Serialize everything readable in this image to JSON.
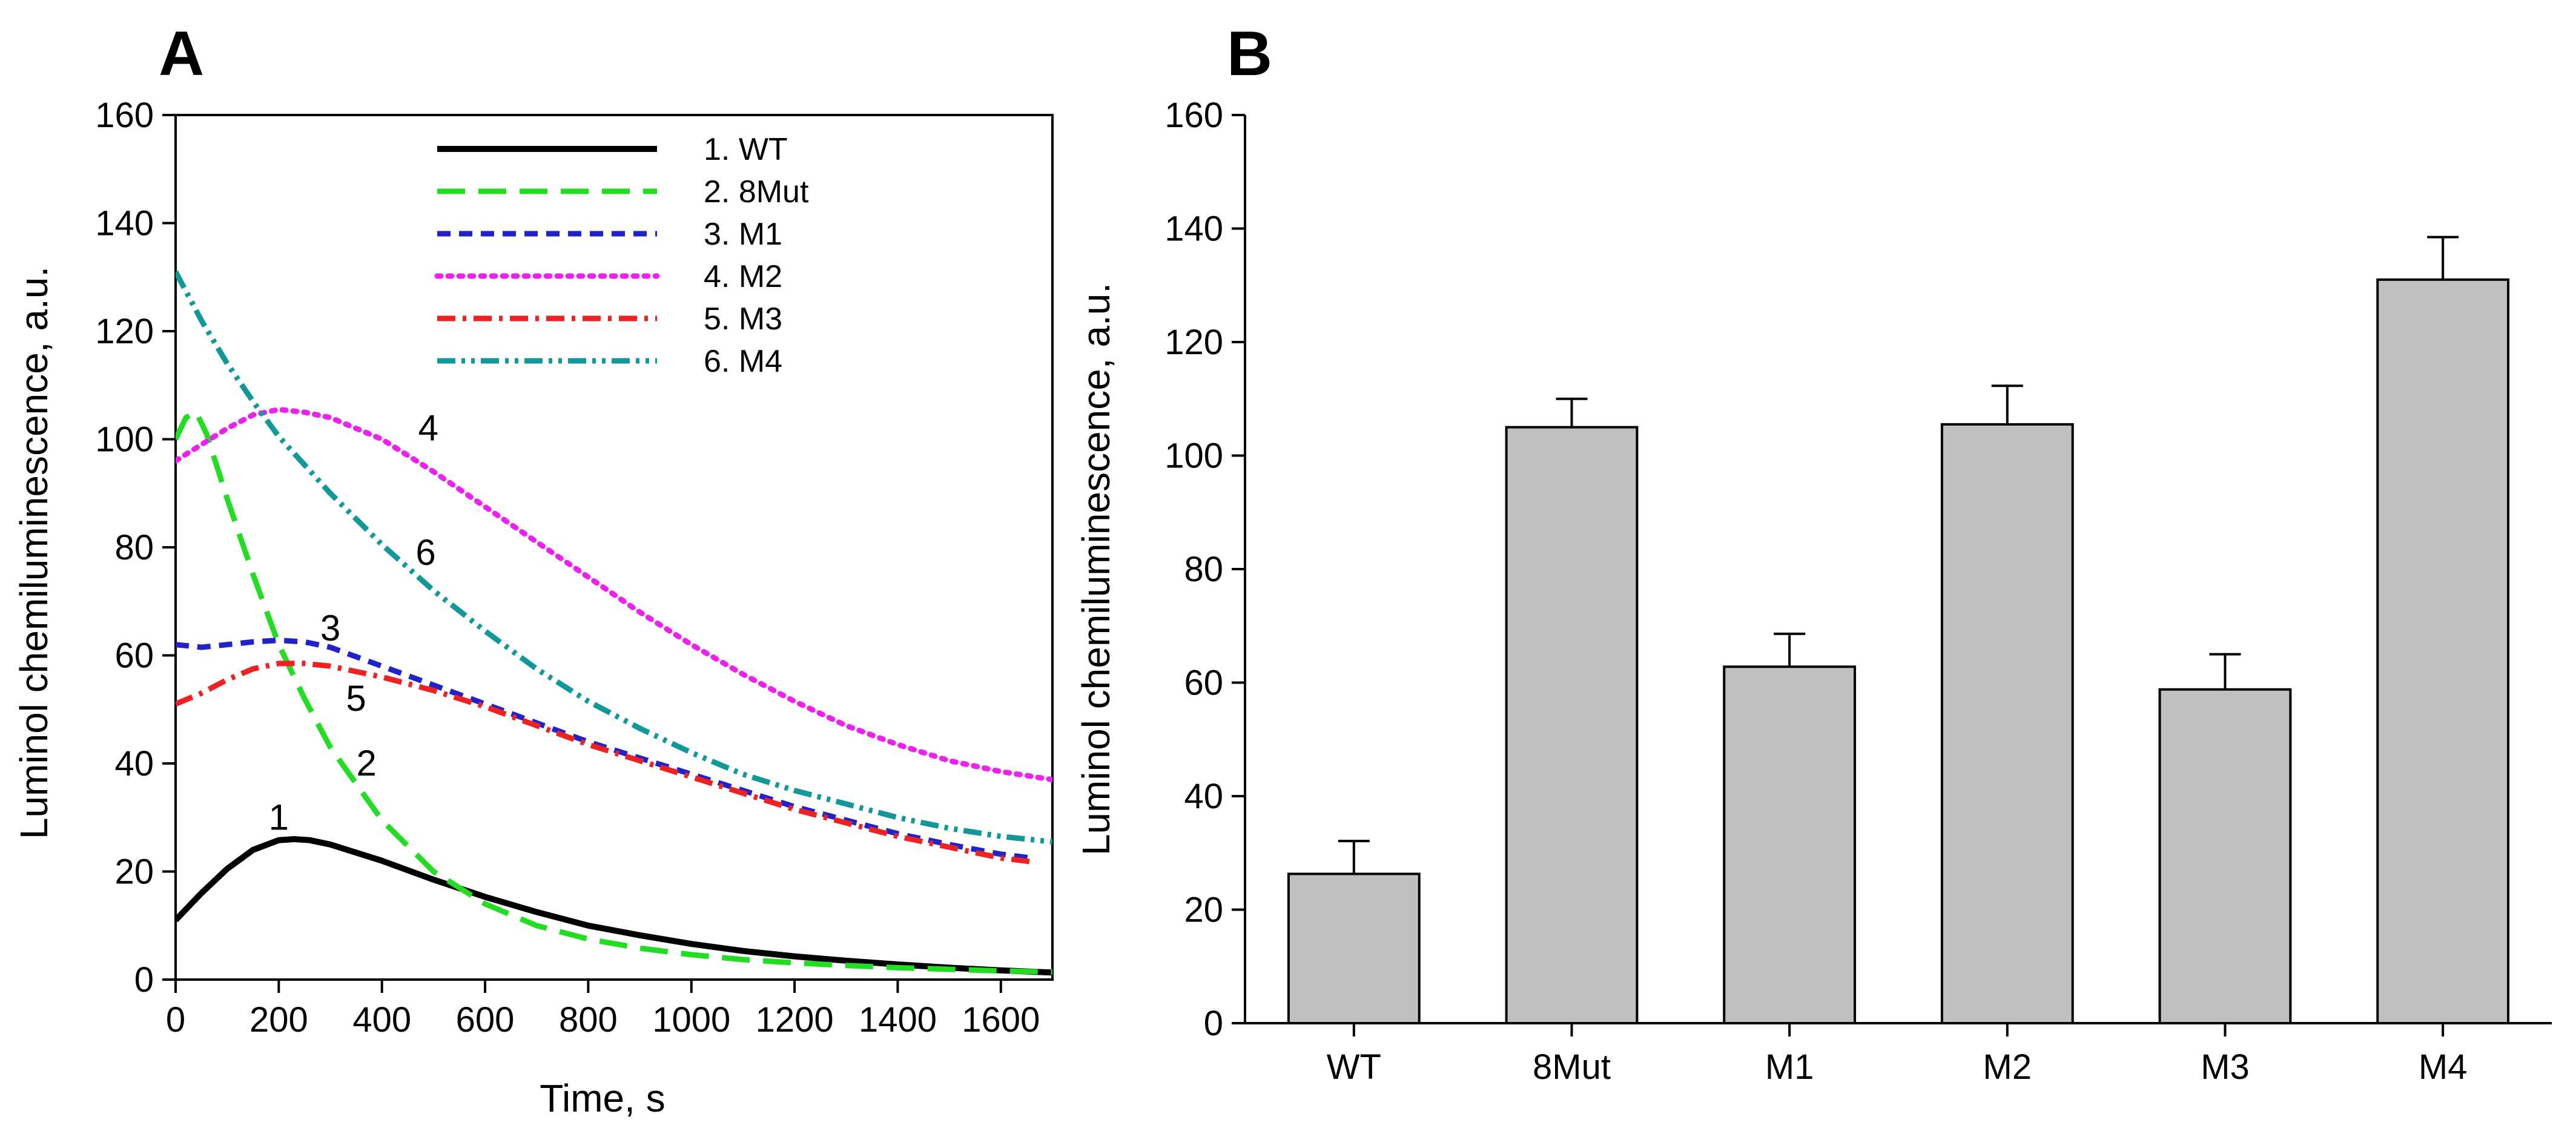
{
  "chart_data": [
    {
      "panel": "A",
      "type": "line",
      "xlabel": "Time, s",
      "ylabel": "Luminol chemiluminescence, a.u.",
      "xlim": [
        0,
        1700
      ],
      "ylim": [
        0,
        160
      ],
      "xticks": [
        0,
        200,
        400,
        600,
        800,
        1000,
        1200,
        1400,
        1600
      ],
      "yticks": [
        0,
        20,
        40,
        60,
        80,
        100,
        120,
        140,
        160
      ],
      "grid": false,
      "legend_position": "top-center",
      "series": [
        {
          "name": "1. WT",
          "label": "1",
          "color": "#000000",
          "style": "solid",
          "x": [
            0,
            50,
            100,
            150,
            200,
            230,
            260,
            300,
            400,
            500,
            600,
            700,
            800,
            900,
            1000,
            1100,
            1200,
            1300,
            1400,
            1500,
            1600,
            1700
          ],
          "y": [
            11,
            16,
            20.5,
            24,
            25.8,
            26,
            25.8,
            25,
            22,
            18.5,
            15.3,
            12.5,
            10,
            8.2,
            6.6,
            5.3,
            4.3,
            3.5,
            2.8,
            2.2,
            1.7,
            1.3
          ],
          "label_xy": [
            200,
            30
          ]
        },
        {
          "name": "2. 8Mut",
          "label": "2",
          "color": "#22dd22",
          "style": "long-dash",
          "x": [
            0,
            20,
            40,
            60,
            100,
            150,
            200,
            250,
            300,
            400,
            500,
            600,
            700,
            800,
            900,
            1000,
            1100,
            1200,
            1300,
            1400,
            1500,
            1600,
            1700
          ],
          "y": [
            100,
            104,
            105,
            101,
            89,
            75,
            62,
            52,
            43,
            29.5,
            20,
            14,
            10,
            7.5,
            5.8,
            4.6,
            3.7,
            3.1,
            2.6,
            2.2,
            1.9,
            1.6,
            1.4
          ],
          "label_xy": [
            370,
            40
          ]
        },
        {
          "name": "3. M1",
          "label": "3",
          "color": "#2222cc",
          "style": "dash",
          "x": [
            0,
            50,
            100,
            150,
            200,
            250,
            300,
            400,
            500,
            600,
            700,
            800,
            900,
            1000,
            1100,
            1200,
            1300,
            1400,
            1500,
            1600,
            1660
          ],
          "y": [
            62,
            61.5,
            62,
            62.5,
            62.8,
            62.5,
            61.5,
            58,
            54.5,
            51,
            47.5,
            44,
            41,
            38,
            35,
            32,
            29.5,
            27,
            25,
            23.2,
            22.5
          ],
          "label_xy": [
            300,
            65
          ]
        },
        {
          "name": "4. M2",
          "label": "4",
          "color": "#ee22ee",
          "style": "dot",
          "x": [
            0,
            50,
            100,
            150,
            200,
            250,
            300,
            400,
            500,
            600,
            700,
            800,
            900,
            1000,
            1100,
            1200,
            1300,
            1400,
            1500,
            1600,
            1700
          ],
          "y": [
            96,
            99,
            102,
            104.5,
            105.5,
            105,
            104,
            100,
            94,
            87.5,
            81,
            74.5,
            68,
            62,
            56.5,
            51.5,
            47,
            43.5,
            40.5,
            38.5,
            37
          ],
          "label_xy": [
            490,
            102
          ]
        },
        {
          "name": "5. M3",
          "label": "5",
          "color": "#ee2222",
          "style": "dash-dot",
          "x": [
            0,
            50,
            100,
            150,
            200,
            250,
            300,
            400,
            500,
            600,
            700,
            800,
            900,
            1000,
            1100,
            1200,
            1300,
            1400,
            1500,
            1600,
            1660
          ],
          "y": [
            51,
            53,
            55.5,
            57.5,
            58.5,
            58.5,
            58,
            56,
            53.5,
            50.5,
            47,
            43.5,
            40.5,
            37.5,
            34.5,
            31.5,
            29,
            26.5,
            24.5,
            22.5,
            21.8
          ],
          "label_xy": [
            350,
            52
          ]
        },
        {
          "name": "6. M4",
          "label": "6",
          "color": "#119999",
          "style": "dash-dot-dot",
          "x": [
            0,
            50,
            100,
            150,
            200,
            300,
            400,
            500,
            600,
            700,
            800,
            900,
            1000,
            1100,
            1200,
            1300,
            1400,
            1500,
            1600,
            1700
          ],
          "y": [
            131,
            122,
            114,
            107,
            100.5,
            90,
            80.5,
            72,
            64.5,
            57.5,
            51.5,
            46.5,
            42,
            38,
            35,
            32.5,
            30,
            28,
            26.5,
            25.5
          ],
          "label_xy": [
            485,
            79
          ]
        }
      ]
    },
    {
      "panel": "B",
      "type": "bar",
      "xlabel": "",
      "ylabel": "Luminol chemiluminescence, a.u.",
      "ylim": [
        0,
        160
      ],
      "yticks": [
        0,
        20,
        40,
        60,
        80,
        100,
        120,
        140,
        160
      ],
      "grid": false,
      "bar_color": "#c0c0c0",
      "categories": [
        "WT",
        "8Mut",
        "M1",
        "M2",
        "M3",
        "M4"
      ],
      "values": [
        26.3,
        105,
        62.8,
        105.5,
        58.8,
        131
      ],
      "errors": [
        5.8,
        5,
        5.8,
        6.8,
        6.2,
        7.5
      ]
    }
  ]
}
